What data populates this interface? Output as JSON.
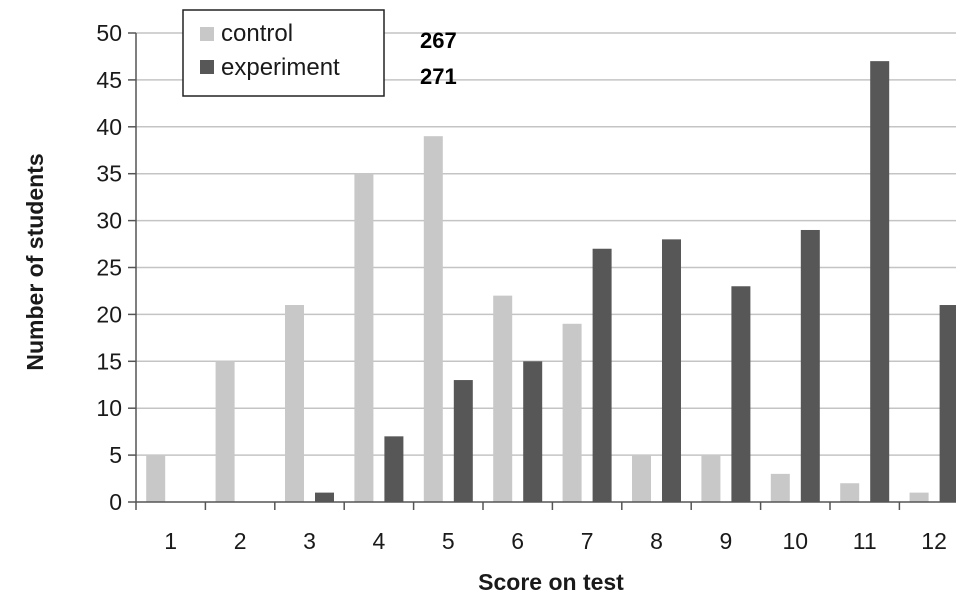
{
  "chart_data": {
    "type": "bar",
    "categories": [
      "1",
      "2",
      "3",
      "4",
      "5",
      "6",
      "7",
      "8",
      "9",
      "10",
      "11",
      "12"
    ],
    "series": [
      {
        "name": "control",
        "color": "#c8c8c8",
        "values": [
          5,
          15,
          21,
          35,
          39,
          22,
          19,
          5,
          5,
          3,
          2,
          1
        ]
      },
      {
        "name": "experiment",
        "color": "#575757",
        "values": [
          0,
          0,
          1,
          7,
          13,
          15,
          27,
          28,
          23,
          29,
          47,
          21
        ]
      }
    ],
    "xlabel": "Score on test",
    "ylabel": "Number of students",
    "ylim": [
      0,
      50
    ],
    "yticks": [
      0,
      5,
      10,
      15,
      20,
      25,
      30,
      35,
      40,
      45,
      50
    ],
    "grid": true,
    "legend_position": "top-left",
    "annotations": [
      "267",
      "271"
    ]
  }
}
